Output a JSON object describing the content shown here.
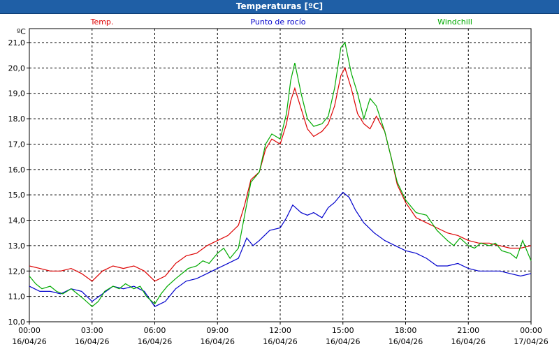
{
  "window": {
    "title": "Temperaturas [ºC]"
  },
  "colors": {
    "temp": "#dd0000",
    "dew": "#0000cc",
    "windchill": "#00aa00",
    "title_bg": "#1f5fa6"
  },
  "chart_data": {
    "type": "line",
    "title": "Temperaturas [ºC]",
    "ylabel": "ºC",
    "xlabel": "",
    "ylim": [
      10.0,
      21.5
    ],
    "xlim": [
      0,
      24
    ],
    "grid": true,
    "legend_position": "top",
    "y_ticks": [
      "10,0",
      "11,0",
      "12,0",
      "13,0",
      "14,0",
      "15,0",
      "16,0",
      "17,0",
      "18,0",
      "19,0",
      "20,0",
      "21,0"
    ],
    "x_ticks": [
      {
        "time": "00:00",
        "date": "16/04/26"
      },
      {
        "time": "03:00",
        "date": "16/04/26"
      },
      {
        "time": "06:00",
        "date": "16/04/26"
      },
      {
        "time": "09:00",
        "date": "16/04/26"
      },
      {
        "time": "12:00",
        "date": "16/04/26"
      },
      {
        "time": "15:00",
        "date": "16/04/26"
      },
      {
        "time": "18:00",
        "date": "16/04/26"
      },
      {
        "time": "21:00",
        "date": "16/04/26"
      },
      {
        "time": "00:00",
        "date": "17/04/26"
      }
    ],
    "series": [
      {
        "name": "Temp.",
        "color": "#dd0000",
        "points": [
          [
            0,
            12.2
          ],
          [
            0.5,
            12.1
          ],
          [
            1,
            12.0
          ],
          [
            1.5,
            12.0
          ],
          [
            2,
            12.1
          ],
          [
            2.5,
            11.9
          ],
          [
            3,
            11.6
          ],
          [
            3.5,
            12.0
          ],
          [
            4,
            12.2
          ],
          [
            4.5,
            12.1
          ],
          [
            5,
            12.2
          ],
          [
            5.5,
            12.0
          ],
          [
            6,
            11.6
          ],
          [
            6.5,
            11.8
          ],
          [
            7,
            12.3
          ],
          [
            7.5,
            12.6
          ],
          [
            8,
            12.7
          ],
          [
            8.5,
            13.0
          ],
          [
            9,
            13.2
          ],
          [
            9.5,
            13.4
          ],
          [
            10,
            13.8
          ],
          [
            10.3,
            14.6
          ],
          [
            10.6,
            15.6
          ],
          [
            11,
            15.9
          ],
          [
            11.3,
            16.8
          ],
          [
            11.6,
            17.2
          ],
          [
            12,
            17.0
          ],
          [
            12.3,
            17.8
          ],
          [
            12.5,
            18.7
          ],
          [
            12.7,
            19.2
          ],
          [
            13,
            18.4
          ],
          [
            13.3,
            17.6
          ],
          [
            13.6,
            17.3
          ],
          [
            14,
            17.5
          ],
          [
            14.3,
            17.8
          ],
          [
            14.6,
            18.5
          ],
          [
            14.9,
            19.7
          ],
          [
            15.1,
            20.0
          ],
          [
            15.4,
            19.2
          ],
          [
            15.7,
            18.2
          ],
          [
            16,
            17.8
          ],
          [
            16.3,
            17.6
          ],
          [
            16.6,
            18.1
          ],
          [
            17,
            17.5
          ],
          [
            17.3,
            16.5
          ],
          [
            17.6,
            15.4
          ],
          [
            18,
            14.7
          ],
          [
            18.5,
            14.1
          ],
          [
            19,
            13.9
          ],
          [
            19.5,
            13.7
          ],
          [
            20,
            13.5
          ],
          [
            20.5,
            13.4
          ],
          [
            21,
            13.2
          ],
          [
            21.5,
            13.1
          ],
          [
            22,
            13.1
          ],
          [
            22.5,
            13.0
          ],
          [
            23,
            12.9
          ],
          [
            23.5,
            12.9
          ],
          [
            24,
            13.0
          ]
        ]
      },
      {
        "name": "Punto de rocío",
        "color": "#0000cc",
        "points": [
          [
            0,
            11.4
          ],
          [
            0.5,
            11.2
          ],
          [
            1,
            11.2
          ],
          [
            1.5,
            11.1
          ],
          [
            2,
            11.3
          ],
          [
            2.5,
            11.2
          ],
          [
            3,
            10.8
          ],
          [
            3.5,
            11.1
          ],
          [
            4,
            11.4
          ],
          [
            4.5,
            11.3
          ],
          [
            5,
            11.4
          ],
          [
            5.5,
            11.2
          ],
          [
            6,
            10.6
          ],
          [
            6.5,
            10.8
          ],
          [
            7,
            11.3
          ],
          [
            7.5,
            11.6
          ],
          [
            8,
            11.7
          ],
          [
            8.5,
            11.9
          ],
          [
            9,
            12.1
          ],
          [
            9.5,
            12.3
          ],
          [
            10,
            12.5
          ],
          [
            10.4,
            13.3
          ],
          [
            10.7,
            13.0
          ],
          [
            11,
            13.2
          ],
          [
            11.5,
            13.6
          ],
          [
            12,
            13.7
          ],
          [
            12.3,
            14.1
          ],
          [
            12.6,
            14.6
          ],
          [
            13,
            14.3
          ],
          [
            13.3,
            14.2
          ],
          [
            13.6,
            14.3
          ],
          [
            14,
            14.1
          ],
          [
            14.3,
            14.5
          ],
          [
            14.6,
            14.7
          ],
          [
            15,
            15.1
          ],
          [
            15.3,
            14.9
          ],
          [
            15.6,
            14.4
          ],
          [
            16,
            13.9
          ],
          [
            16.5,
            13.5
          ],
          [
            17,
            13.2
          ],
          [
            17.5,
            13.0
          ],
          [
            18,
            12.8
          ],
          [
            18.5,
            12.7
          ],
          [
            19,
            12.5
          ],
          [
            19.5,
            12.2
          ],
          [
            20,
            12.2
          ],
          [
            20.5,
            12.3
          ],
          [
            21,
            12.1
          ],
          [
            21.5,
            12.0
          ],
          [
            22,
            12.0
          ],
          [
            22.5,
            12.0
          ],
          [
            23,
            11.9
          ],
          [
            23.5,
            11.8
          ],
          [
            24,
            11.9
          ]
        ]
      },
      {
        "name": "Windchill",
        "color": "#00aa00",
        "points": [
          [
            0,
            11.8
          ],
          [
            0.3,
            11.5
          ],
          [
            0.6,
            11.3
          ],
          [
            1,
            11.4
          ],
          [
            1.3,
            11.2
          ],
          [
            1.6,
            11.1
          ],
          [
            2,
            11.3
          ],
          [
            2.3,
            11.1
          ],
          [
            2.6,
            10.9
          ],
          [
            3,
            10.6
          ],
          [
            3.3,
            10.8
          ],
          [
            3.6,
            11.2
          ],
          [
            4,
            11.4
          ],
          [
            4.3,
            11.3
          ],
          [
            4.6,
            11.5
          ],
          [
            5,
            11.3
          ],
          [
            5.3,
            11.4
          ],
          [
            5.6,
            11.0
          ],
          [
            6,
            10.7
          ],
          [
            6.3,
            11.1
          ],
          [
            6.6,
            11.4
          ],
          [
            7,
            11.7
          ],
          [
            7.3,
            11.9
          ],
          [
            7.6,
            12.1
          ],
          [
            8,
            12.2
          ],
          [
            8.3,
            12.4
          ],
          [
            8.6,
            12.3
          ],
          [
            9,
            12.7
          ],
          [
            9.3,
            12.9
          ],
          [
            9.6,
            12.5
          ],
          [
            10,
            12.9
          ],
          [
            10.3,
            14.2
          ],
          [
            10.6,
            15.5
          ],
          [
            11,
            15.9
          ],
          [
            11.3,
            17.0
          ],
          [
            11.6,
            17.4
          ],
          [
            12,
            17.2
          ],
          [
            12.3,
            18.2
          ],
          [
            12.5,
            19.5
          ],
          [
            12.7,
            20.2
          ],
          [
            13,
            19.0
          ],
          [
            13.3,
            18.0
          ],
          [
            13.6,
            17.7
          ],
          [
            14,
            17.8
          ],
          [
            14.3,
            18.1
          ],
          [
            14.6,
            19.2
          ],
          [
            14.9,
            20.8
          ],
          [
            15.1,
            21.0
          ],
          [
            15.4,
            19.8
          ],
          [
            15.7,
            19.0
          ],
          [
            16,
            18.0
          ],
          [
            16.3,
            18.8
          ],
          [
            16.6,
            18.5
          ],
          [
            17,
            17.5
          ],
          [
            17.3,
            16.5
          ],
          [
            17.6,
            15.5
          ],
          [
            18,
            14.8
          ],
          [
            18.5,
            14.3
          ],
          [
            19,
            14.2
          ],
          [
            19.5,
            13.6
          ],
          [
            20,
            13.2
          ],
          [
            20.3,
            13.0
          ],
          [
            20.6,
            13.3
          ],
          [
            21,
            13.0
          ],
          [
            21.3,
            12.9
          ],
          [
            21.6,
            13.1
          ],
          [
            22,
            13.0
          ],
          [
            22.3,
            13.1
          ],
          [
            22.6,
            12.8
          ],
          [
            23,
            12.7
          ],
          [
            23.3,
            12.5
          ],
          [
            23.6,
            13.2
          ],
          [
            24,
            12.4
          ]
        ]
      }
    ]
  }
}
